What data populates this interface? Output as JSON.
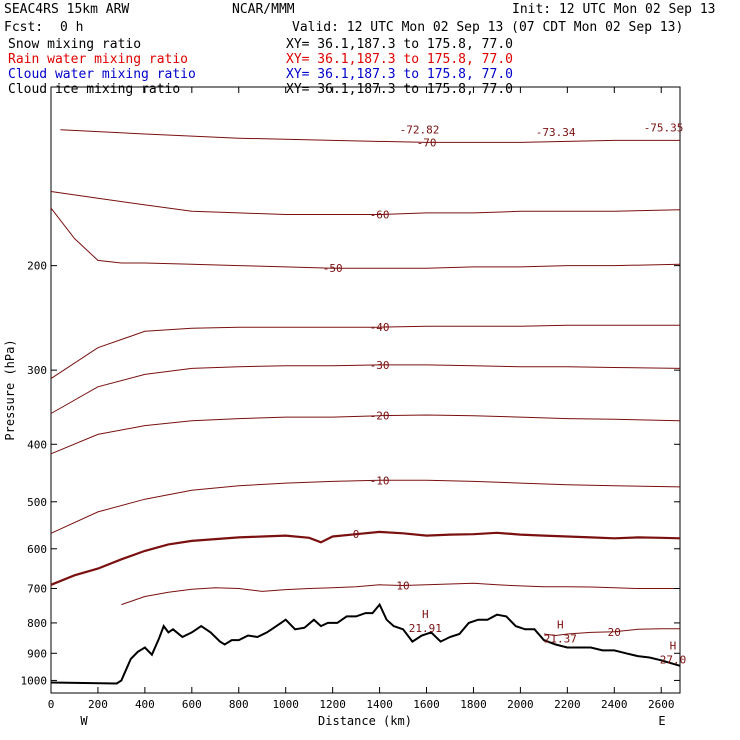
{
  "header": {
    "model": "SEAC4RS 15km ARW",
    "org": "NCAR/MMM",
    "init": "Init: 12 UTC Mon 02 Sep 13",
    "fcst_label": "Fcst:",
    "fcst_value": "0 h",
    "valid": "Valid: 12 UTC Mon 02 Sep 13 (07 CDT Mon 02 Sep 13)",
    "fields": [
      {
        "name": "Snow mixing ratio",
        "xy": "XY=  36.1,187.3 to 175.8, 77.0",
        "color": "#000000"
      },
      {
        "name": "Rain water mixing ratio",
        "xy": "XY=  36.1,187.3 to 175.8, 77.0",
        "color": "#e00000"
      },
      {
        "name": "Cloud water mixing ratio",
        "xy": "XY=  36.1,187.3 to 175.8, 77.0",
        "color": "#0000cc"
      },
      {
        "name": "Cloud ice mixing ratio",
        "xy": "XY=  36.1,187.3 to 175.8, 77.0",
        "color": "#000000"
      }
    ]
  },
  "chart_data": {
    "type": "line",
    "xlabel": "Distance (km)",
    "ylabel": "Pressure (hPa)",
    "xlim": [
      0,
      2680
    ],
    "ylim": [
      1050,
      100
    ],
    "y_scale": "log",
    "x_ticks": [
      0,
      200,
      400,
      600,
      800,
      1000,
      1200,
      1400,
      1600,
      1800,
      2000,
      2200,
      2400,
      2600
    ],
    "y_ticks": [
      200,
      300,
      400,
      500,
      600,
      700,
      800,
      900,
      1000
    ],
    "y_tick_labels": [
      "200",
      "300",
      "400",
      "500",
      "600",
      "700",
      "800",
      "900",
      "1000"
    ],
    "end_labels": {
      "left": "W",
      "right": "E"
    },
    "contour_color": "#7a1010",
    "terrain_color": "#000000",
    "terrain": {
      "x": [
        0,
        280,
        300,
        340,
        370,
        400,
        430,
        460,
        480,
        500,
        520,
        560,
        600,
        640,
        680,
        720,
        740,
        770,
        800,
        840,
        880,
        920,
        950,
        980,
        1000,
        1040,
        1080,
        1120,
        1150,
        1180,
        1220,
        1260,
        1300,
        1340,
        1370,
        1400,
        1430,
        1460,
        1500,
        1540,
        1580,
        1620,
        1660,
        1700,
        1740,
        1780,
        1820,
        1860,
        1900,
        1940,
        1980,
        2020,
        2060,
        2100,
        2150,
        2200,
        2250,
        2300,
        2350,
        2400,
        2450,
        2500,
        2550,
        2600,
        2640,
        2680
      ],
      "p": [
        1008,
        1012,
        1000,
        920,
        895,
        880,
        905,
        850,
        810,
        830,
        820,
        845,
        830,
        810,
        830,
        860,
        870,
        855,
        855,
        840,
        845,
        830,
        815,
        800,
        790,
        820,
        815,
        790,
        810,
        800,
        800,
        780,
        780,
        770,
        770,
        745,
        790,
        810,
        820,
        860,
        840,
        830,
        860,
        845,
        835,
        800,
        790,
        790,
        775,
        780,
        810,
        820,
        820,
        855,
        870,
        880,
        880,
        880,
        890,
        890,
        900,
        910,
        915,
        925,
        935,
        945
      ]
    },
    "contours": [
      {
        "level": -70,
        "label": "-70",
        "x": [
          40,
          400,
          800,
          1200,
          1600,
          2000,
          2400,
          2680
        ],
        "p": [
          118,
          120,
          122,
          123,
          124,
          124,
          123,
          123
        ]
      },
      {
        "level": -60,
        "label": "-60",
        "x": [
          0,
          200,
          400,
          600,
          800,
          1000,
          1200,
          1400,
          1600,
          1800,
          2000,
          2200,
          2400,
          2680
        ],
        "p": [
          150,
          154,
          158,
          162,
          163,
          164,
          164,
          164,
          163,
          163,
          162,
          162,
          162,
          161
        ]
      },
      {
        "level": -50,
        "label": "-50",
        "x": [
          0,
          100,
          200,
          300,
          400,
          600,
          800,
          1000,
          1200,
          1400,
          1600,
          1800,
          2000,
          2200,
          2400,
          2680
        ],
        "p": [
          160,
          180,
          196,
          198,
          198,
          199,
          200,
          201,
          202,
          202,
          202,
          201,
          201,
          200,
          200,
          199
        ]
      },
      {
        "level": -40,
        "label": "-40",
        "x": [
          0,
          200,
          400,
          600,
          800,
          1000,
          1200,
          1400,
          1600,
          1800,
          2000,
          2200,
          2400,
          2680
        ],
        "p": [
          310,
          275,
          258,
          255,
          254,
          254,
          254,
          254,
          253,
          253,
          253,
          252,
          252,
          252
        ]
      },
      {
        "level": -30,
        "label": "-30",
        "x": [
          0,
          200,
          400,
          600,
          800,
          1000,
          1200,
          1400,
          1600,
          1800,
          2000,
          2200,
          2400,
          2680
        ],
        "p": [
          355,
          320,
          305,
          298,
          296,
          295,
          295,
          294,
          294,
          295,
          296,
          296,
          297,
          298
        ]
      },
      {
        "level": -20,
        "label": "-20",
        "x": [
          0,
          200,
          400,
          600,
          800,
          1000,
          1200,
          1400,
          1600,
          1800,
          2000,
          2200,
          2400,
          2680
        ],
        "p": [
          415,
          385,
          372,
          365,
          362,
          360,
          360,
          358,
          357,
          358,
          360,
          362,
          363,
          365
        ]
      },
      {
        "level": -10,
        "label": "-10",
        "x": [
          0,
          200,
          400,
          600,
          800,
          1000,
          1200,
          1400,
          1600,
          1800,
          2000,
          2200,
          2400,
          2680
        ],
        "p": [
          565,
          520,
          495,
          478,
          470,
          465,
          462,
          460,
          460,
          462,
          465,
          468,
          470,
          472
        ]
      },
      {
        "level": 0,
        "label": "0",
        "x": [
          0,
          100,
          200,
          300,
          400,
          500,
          600,
          700,
          800,
          900,
          1000,
          1100,
          1150,
          1200,
          1300,
          1400,
          1500,
          1600,
          1700,
          1800,
          1900,
          2000,
          2100,
          2200,
          2300,
          2400,
          2500,
          2600,
          2680
        ],
        "p": [
          690,
          665,
          648,
          625,
          605,
          590,
          582,
          578,
          574,
          572,
          570,
          575,
          585,
          572,
          567,
          562,
          565,
          570,
          568,
          567,
          564,
          568,
          570,
          572,
          574,
          576,
          574,
          575,
          576
        ]
      },
      {
        "level": 10,
        "label": "10",
        "x": [
          300,
          400,
          500,
          600,
          700,
          800,
          900,
          1000,
          1100,
          1200,
          1300,
          1400,
          1500,
          1600,
          1700,
          1800,
          1900,
          2000,
          2100,
          2200,
          2300,
          2400,
          2500,
          2600,
          2680
        ],
        "p": [
          745,
          722,
          710,
          702,
          698,
          700,
          708,
          703,
          700,
          698,
          695,
          690,
          692,
          690,
          688,
          686,
          690,
          693,
          695,
          695,
          696,
          698,
          700,
          700,
          700
        ]
      },
      {
        "level": 20,
        "label": "20",
        "x": [
          2100,
          2150,
          2200,
          2300,
          2400,
          2500,
          2600,
          2680
        ],
        "p": [
          835,
          840,
          835,
          830,
          828,
          820,
          818,
          818
        ]
      }
    ],
    "maxima": [
      {
        "label": "H",
        "value": "21.91",
        "x": 1595,
        "p": 810
      },
      {
        "label": "H",
        "value": "21.37",
        "x": 2170,
        "p": 843
      },
      {
        "label": "H",
        "value": "27.0",
        "x": 2650,
        "p": 915
      }
    ],
    "top_labels": [
      {
        "text": "-72.82",
        "x": 1570,
        "p": 118
      },
      {
        "text": "-73.34",
        "x": 2150,
        "p": 119
      },
      {
        "text": "-75.35",
        "x": 2610,
        "p": 117
      }
    ]
  }
}
